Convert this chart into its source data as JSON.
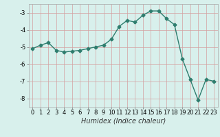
{
  "x": [
    0,
    1,
    2,
    3,
    4,
    5,
    6,
    7,
    8,
    9,
    10,
    11,
    12,
    13,
    14,
    15,
    16,
    17,
    18,
    19,
    20,
    21,
    22,
    23
  ],
  "y": [
    -5.1,
    -4.9,
    -4.75,
    -5.2,
    -5.3,
    -5.25,
    -5.2,
    -5.1,
    -5.0,
    -4.9,
    -4.55,
    -3.8,
    -3.45,
    -3.55,
    -3.15,
    -2.9,
    -2.9,
    -3.35,
    -3.7,
    -5.7,
    -6.9,
    -8.1,
    -6.9,
    -7.0
  ],
  "line_color": "#2e7d6e",
  "marker": "D",
  "markersize": 2.5,
  "linewidth": 1.0,
  "xlabel": "Humidex (Indice chaleur)",
  "xlabel_fontsize": 7,
  "xlabel_style": "italic",
  "xlim": [
    -0.5,
    23.5
  ],
  "ylim": [
    -8.5,
    -2.5
  ],
  "yticks": [
    -8,
    -7,
    -6,
    -5,
    -4,
    -3
  ],
  "xticks": [
    0,
    1,
    2,
    3,
    4,
    5,
    6,
    7,
    8,
    9,
    10,
    11,
    12,
    13,
    14,
    15,
    16,
    17,
    18,
    19,
    20,
    21,
    22,
    23
  ],
  "bg_color": "#d8f0ec",
  "grid_color": "#c0d8d4",
  "tick_fontsize": 6,
  "fig_width": 3.2,
  "fig_height": 2.0,
  "dpi": 100
}
